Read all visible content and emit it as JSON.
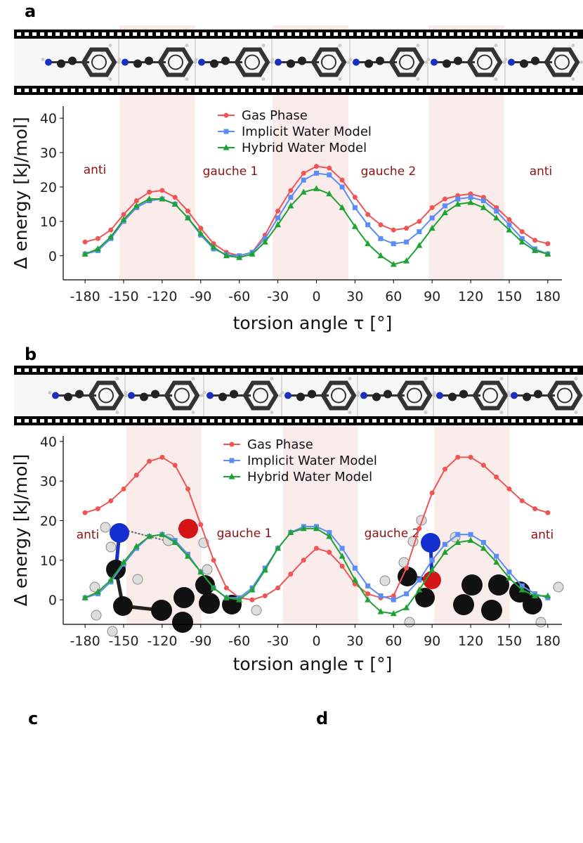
{
  "chart_data": [
    {
      "type": "line",
      "panel": "a",
      "xlabel": "torsion angle τ [°]",
      "ylabel": "Δ energy [kJ/mol]",
      "annotations": [
        "anti",
        "gauche 1",
        "gauche 2",
        "anti"
      ],
      "x": [
        -180,
        -170,
        -160,
        -150,
        -140,
        -130,
        -120,
        -110,
        -100,
        -90,
        -80,
        -70,
        -60,
        -50,
        -40,
        -30,
        -20,
        -10,
        0,
        10,
        20,
        30,
        40,
        50,
        60,
        70,
        80,
        90,
        100,
        110,
        120,
        130,
        140,
        150,
        160,
        170,
        180
      ],
      "series": [
        {
          "name": "Gas Phase",
          "color": "#f05555",
          "marker": "circle",
          "values": [
            4,
            5,
            7.5,
            12,
            16,
            18.5,
            19,
            17,
            13,
            8,
            3.5,
            1,
            0,
            1,
            6,
            13,
            19,
            24,
            26,
            25.5,
            22,
            17,
            12,
            9,
            7.5,
            8,
            10,
            14,
            16.5,
            17.5,
            18,
            17,
            14,
            10.5,
            7,
            4.5,
            3.5
          ]
        },
        {
          "name": "Implicit Water Model",
          "color": "#5a8df5",
          "marker": "square",
          "values": [
            0.5,
            1.5,
            5,
            10,
            14,
            16,
            16.5,
            15,
            11,
            6,
            2,
            0.3,
            0,
            1,
            5,
            11,
            17,
            22,
            24,
            23.5,
            20,
            14,
            9,
            5,
            3.5,
            4,
            7,
            11,
            14.5,
            16.5,
            17,
            16,
            13,
            9,
            5,
            2,
            0.5
          ]
        },
        {
          "name": "Hybrid Water Model",
          "color": "#1ea332",
          "marker": "triangle",
          "values": [
            0.5,
            2,
            5.5,
            10.5,
            14.5,
            16.5,
            16.5,
            15,
            11,
            6.5,
            2.5,
            0,
            -0.5,
            0.5,
            4,
            9,
            14.5,
            18.5,
            19.5,
            18,
            14,
            8.5,
            3.5,
            0,
            -2.5,
            -1.5,
            3,
            8,
            12.5,
            15,
            15.5,
            14,
            11,
            7.5,
            4,
            1.5,
            0.5
          ]
        }
      ],
      "xlim": [
        -197,
        191
      ],
      "xticks": [
        -180,
        -150,
        -120,
        -90,
        -60,
        -30,
        0,
        30,
        60,
        90,
        120,
        150,
        180
      ],
      "ylim": [
        -7,
        43.5
      ],
      "yticks": [
        0,
        10,
        20,
        30,
        40
      ]
    },
    {
      "type": "line",
      "panel": "b",
      "xlabel": "torsion angle τ [°]",
      "ylabel": "Δ energy [kJ/mol]",
      "annotations": [
        "anti",
        "gauche 1",
        "gauche 2",
        "anti"
      ],
      "x": [
        -180,
        -170,
        -160,
        -150,
        -140,
        -130,
        -120,
        -110,
        -100,
        -90,
        -80,
        -70,
        -60,
        -50,
        -40,
        -30,
        -20,
        -10,
        0,
        10,
        20,
        30,
        40,
        50,
        60,
        70,
        80,
        90,
        100,
        110,
        120,
        130,
        140,
        150,
        160,
        170,
        180
      ],
      "series": [
        {
          "name": "Gas Phase",
          "color": "#f05555",
          "marker": "circle",
          "values": [
            22,
            23,
            25,
            28,
            31.5,
            35,
            36,
            34,
            28,
            19,
            10,
            3,
            0.5,
            0,
            1,
            3,
            6.5,
            10,
            13,
            12,
            8.5,
            4,
            1.5,
            0.5,
            1,
            8,
            18,
            27,
            33,
            36,
            36,
            34,
            31,
            28,
            25,
            23,
            22
          ]
        },
        {
          "name": "Implicit Water Model",
          "color": "#5a8df5",
          "marker": "square",
          "values": [
            0.5,
            1.5,
            4.5,
            9,
            13,
            16,
            16.5,
            15,
            11.5,
            7,
            3,
            0.5,
            0.5,
            3,
            8,
            13,
            17,
            18.5,
            18.5,
            17,
            13,
            8,
            3.5,
            1,
            0,
            1.5,
            5,
            10,
            14,
            16.5,
            16.5,
            14.5,
            11,
            7,
            3.5,
            1.5,
            0.5
          ]
        },
        {
          "name": "Hybrid Water Model",
          "color": "#1ea332",
          "marker": "triangle",
          "values": [
            0.5,
            2,
            5,
            9.5,
            13.5,
            16,
            16.5,
            14.5,
            11,
            7,
            3,
            0.5,
            0,
            2.5,
            7.5,
            13,
            17,
            18,
            18,
            16,
            11,
            5,
            0,
            -3,
            -3.5,
            -2,
            2.5,
            7.5,
            12,
            14.5,
            15,
            13,
            9.5,
            5.5,
            2.5,
            1,
            1
          ]
        }
      ],
      "xlim": [
        -197,
        191
      ],
      "xticks": [
        -180,
        -150,
        -120,
        -90,
        -60,
        -30,
        0,
        30,
        60,
        90,
        120,
        150,
        180
      ],
      "ylim": [
        -6.2,
        41.4
      ],
      "yticks": [
        0,
        10,
        20,
        30,
        40
      ]
    }
  ],
  "panel_labels": [
    "c",
    "d"
  ]
}
